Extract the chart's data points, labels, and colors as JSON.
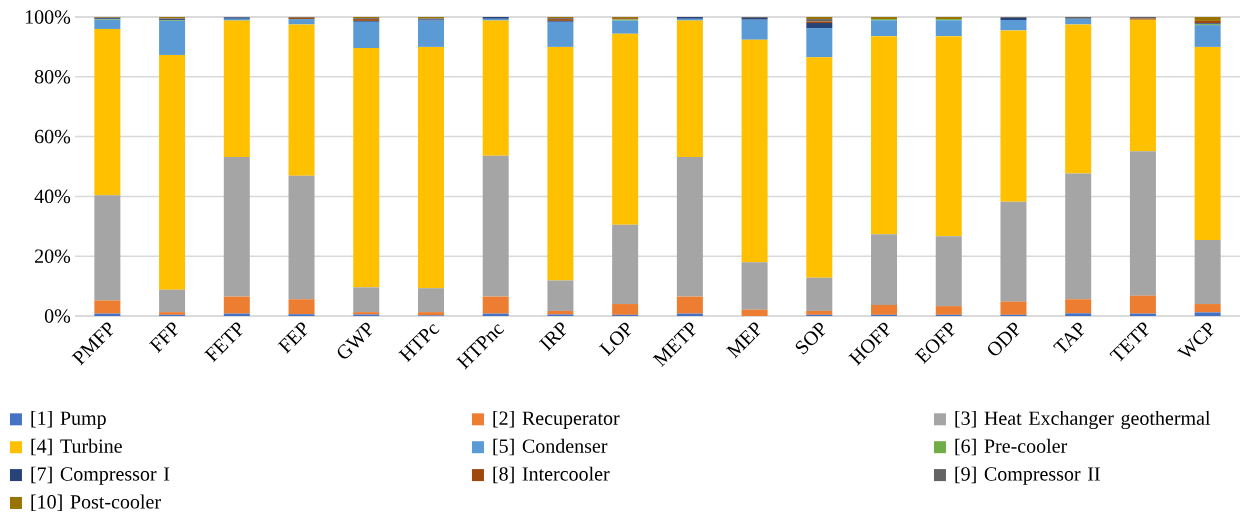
{
  "chart_data": {
    "type": "bar",
    "stacked": true,
    "categories": [
      "PMFP",
      "FFP",
      "FETP",
      "FEP",
      "GWP",
      "HTPc",
      "HTPnc",
      "IRP",
      "LOP",
      "METP",
      "MEP",
      "SOP",
      "HOFP",
      "EOFP",
      "ODP",
      "TAP",
      "TETP",
      "WCP"
    ],
    "series": [
      {
        "name": "[1] Pump",
        "color": "#4472c4",
        "values": [
          0.8,
          0.4,
          0.8,
          0.6,
          0.5,
          0.2,
          0.8,
          0.5,
          0.4,
          0.8,
          0,
          0.4,
          0.4,
          0.4,
          0.4,
          0.9,
          0.8,
          1.2
        ]
      },
      {
        "name": "[2] Recuperator",
        "color": "#ed7d31",
        "values": [
          4.4,
          0.9,
          5.7,
          5.0,
          0.8,
          1.1,
          5.7,
          1.2,
          3.6,
          5.7,
          2.1,
          1.3,
          3.3,
          2.9,
          4.4,
          4.7,
          6.0,
          2.8
        ]
      },
      {
        "name": "[3] Heat Exchanger geothermal",
        "color": "#a5a5a5",
        "values": [
          35.2,
          7.5,
          46.7,
          41.3,
          8.3,
          8.0,
          47.1,
          10.2,
          26.5,
          46.7,
          15.9,
          11.1,
          23.6,
          23.4,
          33.4,
          42.1,
          48.3,
          21.4
        ]
      },
      {
        "name": "[4] Turbine",
        "color": "#ffc000",
        "values": [
          55.6,
          78.5,
          45.6,
          50.6,
          80.0,
          80.7,
          45.2,
          78.1,
          63.9,
          45.6,
          74.4,
          73.7,
          66.3,
          66.9,
          57.3,
          49.8,
          44.0,
          64.6
        ]
      },
      {
        "name": "[5] Condenser",
        "color": "#5b9bd5",
        "values": [
          3.1,
          11.4,
          0.6,
          1.8,
          8.8,
          8.8,
          0.6,
          8.4,
          4.4,
          0.6,
          6.7,
          9.8,
          5.3,
          5.3,
          3.5,
          1.9,
          0,
          7.3
        ]
      },
      {
        "name": "[6] Pre-cooler",
        "color": "#70ad47",
        "values": [
          0.2,
          0.2,
          0,
          0,
          0,
          0,
          0,
          0,
          0.4,
          0,
          0,
          0,
          0.4,
          0.4,
          0,
          0,
          0,
          0.3
        ]
      },
      {
        "name": "[7] Compressor I",
        "color": "#264478",
        "values": [
          0.3,
          0.4,
          0.5,
          0,
          0.3,
          0.4,
          0.6,
          0.3,
          0,
          0.6,
          0.6,
          1.7,
          0,
          0,
          0.7,
          0,
          0,
          0.3
        ]
      },
      {
        "name": "[8] Intercooler",
        "color": "#9e480e",
        "values": [
          0.1,
          0.1,
          0,
          0.5,
          0.6,
          0,
          0,
          0.6,
          0.4,
          0,
          0,
          0.5,
          0,
          0,
          0,
          0,
          0.4,
          0.8
        ]
      },
      {
        "name": "[9] Compressor II",
        "color": "#636363",
        "values": [
          0.1,
          0.2,
          0,
          0.2,
          0.3,
          0.3,
          0,
          0.3,
          0,
          0,
          0.3,
          0.8,
          0,
          0,
          0.3,
          0.6,
          0.5,
          0
        ]
      },
      {
        "name": "[10] Post-cooler",
        "color": "#997300",
        "values": [
          0.2,
          0.4,
          0,
          0,
          0.4,
          0.5,
          0,
          0.4,
          0.4,
          0,
          0,
          0.7,
          0.7,
          0.7,
          0,
          0,
          0,
          1.3
        ]
      }
    ],
    "ylim": [
      0,
      100
    ],
    "yticks": [
      {
        "value": 0,
        "label": "0%"
      },
      {
        "value": 20,
        "label": "20%"
      },
      {
        "value": 40,
        "label": "40%"
      },
      {
        "value": 60,
        "label": "60%"
      },
      {
        "value": 80,
        "label": "80%"
      },
      {
        "value": 100,
        "label": "100%"
      }
    ],
    "grid": "y",
    "legend": "bottom"
  }
}
